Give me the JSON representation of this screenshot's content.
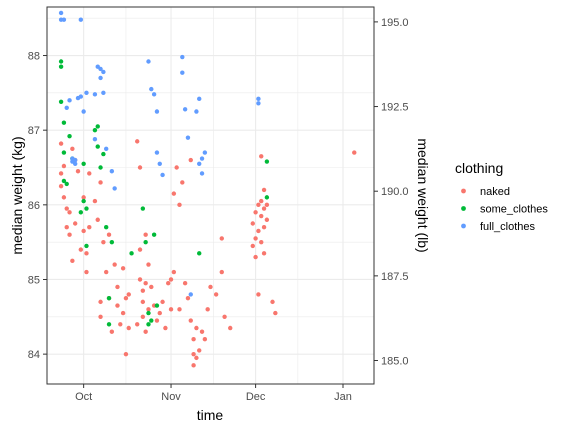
{
  "chart_data": {
    "type": "scatter",
    "xlabel": "time",
    "ylabel": "median weight (kg)",
    "y2label": "median weight (lb)",
    "xlim": [
      "2017-09-18",
      "2018-01-12"
    ],
    "ylim": [
      83.6,
      88.65
    ],
    "x_ticks": [
      {
        "date": "2017-10-01",
        "label": "Oct"
      },
      {
        "date": "2017-11-01",
        "label": "Nov"
      },
      {
        "date": "2017-12-01",
        "label": "Dec"
      },
      {
        "date": "2018-01-01",
        "label": "Jan"
      }
    ],
    "y_ticks": [
      84,
      85,
      86,
      87,
      88
    ],
    "y2_ticks": [
      "185.0",
      "187.5",
      "190.0",
      "192.5",
      "195.0"
    ],
    "y2_scale_kg_per_lb": 0.45359237,
    "grid": true,
    "legend_title": "clothing",
    "legend_position": "right",
    "series": [
      {
        "name": "naked",
        "color": "#F8766D",
        "points": [
          [
            "2017-09-23",
            86.82
          ],
          [
            "2017-09-23",
            86.42
          ],
          [
            "2017-09-23",
            86.25
          ],
          [
            "2017-09-24",
            86.52
          ],
          [
            "2017-09-24",
            86.1
          ],
          [
            "2017-09-25",
            85.95
          ],
          [
            "2017-09-25",
            85.7
          ],
          [
            "2017-09-26",
            85.9
          ],
          [
            "2017-09-26",
            85.6
          ],
          [
            "2017-09-27",
            86.75
          ],
          [
            "2017-09-27",
            85.25
          ],
          [
            "2017-09-28",
            86.6
          ],
          [
            "2017-09-28",
            85.75
          ],
          [
            "2017-09-29",
            86.45
          ],
          [
            "2017-09-30",
            85.4
          ],
          [
            "2017-10-01",
            86.1
          ],
          [
            "2017-10-01",
            85.65
          ],
          [
            "2017-10-02",
            85.35
          ],
          [
            "2017-10-02",
            85.1
          ],
          [
            "2017-10-03",
            86.42
          ],
          [
            "2017-10-03",
            85.7
          ],
          [
            "2017-10-05",
            86.05
          ],
          [
            "2017-10-06",
            85.8
          ],
          [
            "2017-10-07",
            86.3
          ],
          [
            "2017-10-07",
            84.7
          ],
          [
            "2017-10-07",
            84.5
          ],
          [
            "2017-10-08",
            85.5
          ],
          [
            "2017-10-09",
            85.1
          ],
          [
            "2017-10-10",
            85.6
          ],
          [
            "2017-10-10",
            84.75
          ],
          [
            "2017-10-11",
            84.3
          ],
          [
            "2017-10-12",
            85.2
          ],
          [
            "2017-10-13",
            84.9
          ],
          [
            "2017-10-13",
            84.65
          ],
          [
            "2017-10-14",
            84.4
          ],
          [
            "2017-10-15",
            85.15
          ],
          [
            "2017-10-15",
            84.55
          ],
          [
            "2017-10-16",
            84.75
          ],
          [
            "2017-10-16",
            84.0
          ],
          [
            "2017-10-17",
            84.35
          ],
          [
            "2017-10-17",
            84.8
          ],
          [
            "2017-10-20",
            86.85
          ],
          [
            "2017-10-20",
            84.4
          ],
          [
            "2017-10-21",
            86.5
          ],
          [
            "2017-10-21",
            85.4
          ],
          [
            "2017-10-21",
            85.0
          ],
          [
            "2017-10-22",
            84.85
          ],
          [
            "2017-10-22",
            84.7
          ],
          [
            "2017-10-22",
            84.5
          ],
          [
            "2017-10-23",
            85.6
          ],
          [
            "2017-10-23",
            84.95
          ],
          [
            "2017-10-23",
            84.3
          ],
          [
            "2017-10-24",
            85.2
          ],
          [
            "2017-10-24",
            84.6
          ],
          [
            "2017-10-25",
            84.9
          ],
          [
            "2017-10-26",
            84.65
          ],
          [
            "2017-10-27",
            84.45
          ],
          [
            "2017-10-28",
            84.55
          ],
          [
            "2017-10-29",
            84.7
          ],
          [
            "2017-10-30",
            84.35
          ],
          [
            "2017-10-31",
            84.95
          ],
          [
            "2017-11-01",
            85.0
          ],
          [
            "2017-11-01",
            84.6
          ],
          [
            "2017-11-02",
            86.15
          ],
          [
            "2017-11-02",
            85.1
          ],
          [
            "2017-11-03",
            86.5
          ],
          [
            "2017-11-04",
            86.0
          ],
          [
            "2017-11-04",
            84.6
          ],
          [
            "2017-11-05",
            86.3
          ],
          [
            "2017-11-06",
            84.95
          ],
          [
            "2017-11-07",
            84.75
          ],
          [
            "2017-11-08",
            86.6
          ],
          [
            "2017-11-08",
            84.45
          ],
          [
            "2017-11-09",
            84.2
          ],
          [
            "2017-11-09",
            84.0
          ],
          [
            "2017-11-09",
            83.85
          ],
          [
            "2017-11-10",
            84.35
          ],
          [
            "2017-11-10",
            83.95
          ],
          [
            "2017-11-11",
            84.05
          ],
          [
            "2017-11-12",
            84.3
          ],
          [
            "2017-11-13",
            84.2
          ],
          [
            "2017-11-14",
            84.6
          ],
          [
            "2017-11-15",
            84.9
          ],
          [
            "2017-11-17",
            84.8
          ],
          [
            "2017-11-19",
            85.55
          ],
          [
            "2017-11-19",
            85.1
          ],
          [
            "2017-11-20",
            84.5
          ],
          [
            "2017-11-22",
            84.35
          ],
          [
            "2017-11-30",
            85.75
          ],
          [
            "2017-11-30",
            85.45
          ],
          [
            "2017-12-01",
            85.9
          ],
          [
            "2017-12-01",
            85.55
          ],
          [
            "2017-12-01",
            85.3
          ],
          [
            "2017-12-02",
            86.0
          ],
          [
            "2017-12-02",
            85.65
          ],
          [
            "2017-12-02",
            84.8
          ],
          [
            "2017-12-03",
            86.05
          ],
          [
            "2017-12-03",
            85.85
          ],
          [
            "2017-12-03",
            85.5
          ],
          [
            "2017-12-03",
            86.65
          ],
          [
            "2017-12-04",
            85.95
          ],
          [
            "2017-12-04",
            85.7
          ],
          [
            "2017-12-04",
            85.35
          ],
          [
            "2017-12-04",
            86.2
          ],
          [
            "2017-12-05",
            85.8
          ],
          [
            "2017-12-05",
            86.0
          ],
          [
            "2017-12-07",
            84.7
          ],
          [
            "2017-12-08",
            84.55
          ],
          [
            "2018-01-05",
            86.7
          ]
        ]
      },
      {
        "name": "some_clothes",
        "color": "#00BA38",
        "points": [
          [
            "2017-09-23",
            87.92
          ],
          [
            "2017-09-23",
            87.85
          ],
          [
            "2017-09-23",
            87.38
          ],
          [
            "2017-09-24",
            87.1
          ],
          [
            "2017-09-24",
            86.7
          ],
          [
            "2017-09-24",
            86.32
          ],
          [
            "2017-09-25",
            86.28
          ],
          [
            "2017-09-26",
            86.92
          ],
          [
            "2017-09-27",
            86.62
          ],
          [
            "2017-09-30",
            85.9
          ],
          [
            "2017-10-01",
            86.55
          ],
          [
            "2017-10-01",
            86.05
          ],
          [
            "2017-10-02",
            85.95
          ],
          [
            "2017-10-02",
            85.45
          ],
          [
            "2017-10-05",
            87.0
          ],
          [
            "2017-10-06",
            87.05
          ],
          [
            "2017-10-06",
            86.78
          ],
          [
            "2017-10-07",
            86.5
          ],
          [
            "2017-10-08",
            86.68
          ],
          [
            "2017-10-09",
            85.7
          ],
          [
            "2017-10-10",
            84.75
          ],
          [
            "2017-10-10",
            84.4
          ],
          [
            "2017-10-11",
            85.5
          ],
          [
            "2017-10-18",
            85.35
          ],
          [
            "2017-10-22",
            85.95
          ],
          [
            "2017-10-23",
            85.5
          ],
          [
            "2017-10-24",
            84.55
          ],
          [
            "2017-10-24",
            84.4
          ],
          [
            "2017-10-25",
            84.45
          ],
          [
            "2017-10-26",
            85.6
          ],
          [
            "2017-10-27",
            84.65
          ],
          [
            "2017-11-11",
            85.35
          ],
          [
            "2017-12-05",
            86.1
          ],
          [
            "2017-12-05",
            86.58
          ]
        ]
      },
      {
        "name": "full_clothes",
        "color": "#619CFF",
        "points": [
          [
            "2017-09-23",
            88.57
          ],
          [
            "2017-09-23",
            88.48
          ],
          [
            "2017-09-24",
            88.48
          ],
          [
            "2017-09-25",
            87.3
          ],
          [
            "2017-09-26",
            87.4
          ],
          [
            "2017-09-27",
            86.62
          ],
          [
            "2017-09-27",
            86.58
          ],
          [
            "2017-09-28",
            86.6
          ],
          [
            "2017-09-28",
            86.55
          ],
          [
            "2017-09-29",
            87.43
          ],
          [
            "2017-09-30",
            88.48
          ],
          [
            "2017-09-30",
            87.45
          ],
          [
            "2017-10-01",
            87.25
          ],
          [
            "2017-10-02",
            87.5
          ],
          [
            "2017-10-05",
            86.88
          ],
          [
            "2017-10-05",
            87.48
          ],
          [
            "2017-10-06",
            87.85
          ],
          [
            "2017-10-07",
            87.82
          ],
          [
            "2017-10-07",
            87.7
          ],
          [
            "2017-10-08",
            87.78
          ],
          [
            "2017-10-08",
            87.5
          ],
          [
            "2017-10-09",
            86.75
          ],
          [
            "2017-10-11",
            86.45
          ],
          [
            "2017-10-12",
            86.22
          ],
          [
            "2017-10-24",
            87.92
          ],
          [
            "2017-10-25",
            87.55
          ],
          [
            "2017-10-26",
            87.48
          ],
          [
            "2017-10-27",
            87.25
          ],
          [
            "2017-10-27",
            86.7
          ],
          [
            "2017-10-28",
            86.55
          ],
          [
            "2017-10-29",
            86.4
          ],
          [
            "2017-11-05",
            87.98
          ],
          [
            "2017-11-05",
            87.77
          ],
          [
            "2017-11-06",
            87.28
          ],
          [
            "2017-11-07",
            86.9
          ],
          [
            "2017-11-08",
            84.8
          ],
          [
            "2017-11-10",
            87.25
          ],
          [
            "2017-11-11",
            87.42
          ],
          [
            "2017-11-11",
            86.55
          ],
          [
            "2017-11-12",
            86.42
          ],
          [
            "2017-11-12",
            86.62
          ],
          [
            "2017-11-13",
            86.7
          ],
          [
            "2017-12-02",
            87.42
          ],
          [
            "2017-12-02",
            87.36
          ]
        ]
      }
    ]
  }
}
